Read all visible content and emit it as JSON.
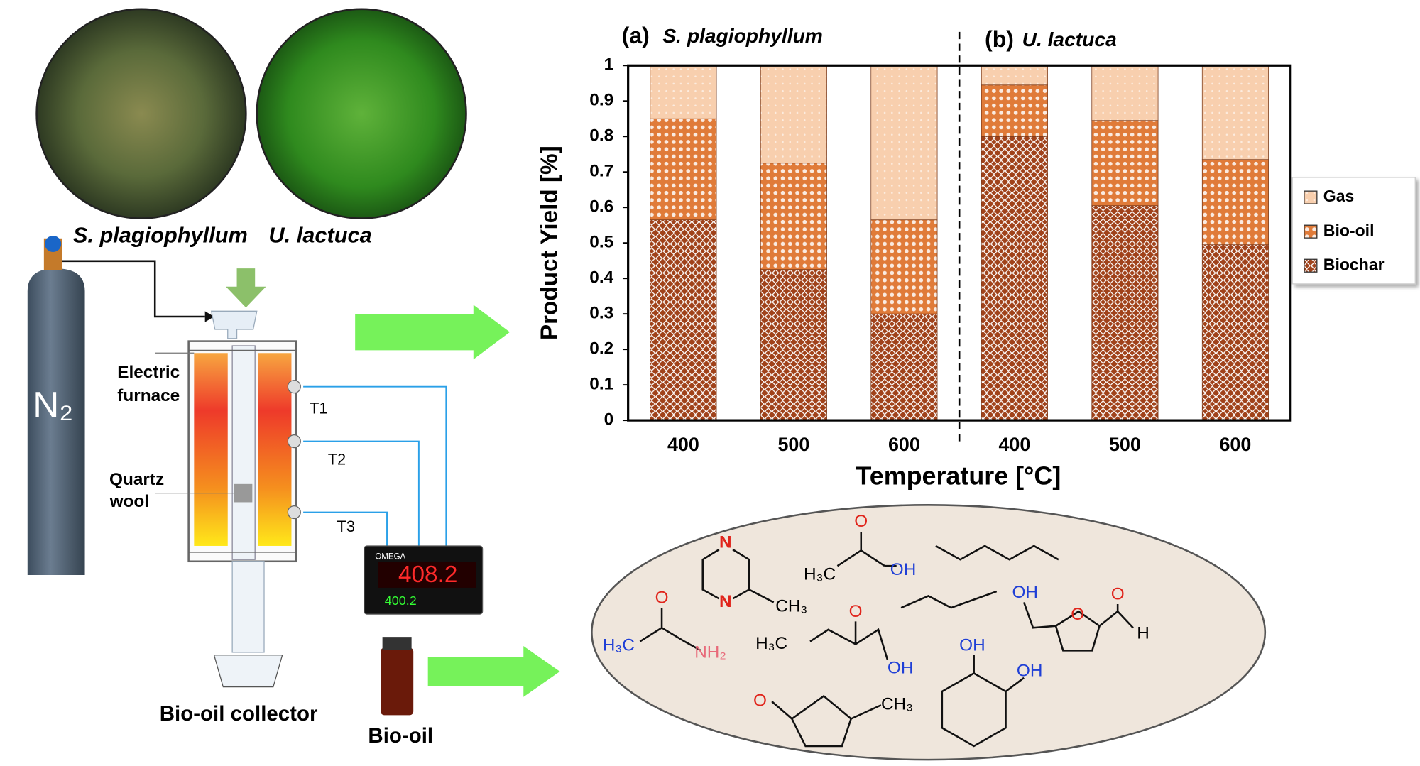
{
  "chart_data": {
    "type": "stacked-bar",
    "panel_titles": [
      {
        "tag": "(a)",
        "name": "S. plagiophyllum"
      },
      {
        "tag": "(b)",
        "name": "U. lactuca"
      }
    ],
    "x_label": "Temperature [°C]",
    "y_label": "Product Yield [%]",
    "categories": [
      "400",
      "500",
      "600",
      "400",
      "500",
      "600"
    ],
    "series": [
      {
        "name": "Biochar",
        "color": "#a0421a",
        "values": [
          0.565,
          0.425,
          0.3,
          0.8,
          0.605,
          0.495
        ]
      },
      {
        "name": "Bio-oil",
        "color": "#e07b39",
        "values": [
          0.285,
          0.3,
          0.265,
          0.145,
          0.24,
          0.24
        ]
      },
      {
        "name": "Gas",
        "color": "#f8cfae",
        "values": [
          0.15,
          0.275,
          0.435,
          0.055,
          0.155,
          0.265
        ]
      }
    ],
    "ylim": [
      0,
      1
    ],
    "yticks": [
      0,
      0.1,
      0.2,
      0.3,
      0.4,
      0.5,
      0.6,
      0.7,
      0.8,
      0.9,
      1
    ],
    "legend": "right"
  },
  "diagram": {
    "photo_labels": [
      "S. plagiophyllum",
      "U. lactuca"
    ],
    "gas": "N₂",
    "electric_furnace": [
      "Electric",
      "furnace"
    ],
    "quartz_wool": [
      "Quartz",
      "wool"
    ],
    "thermocouples": [
      "T1",
      "T2",
      "T3"
    ],
    "controller": {
      "brand": "OMEGA",
      "pv": "408.2",
      "sv": "400.2"
    },
    "collector": "Bio-oil collector",
    "product": "Bio-oil",
    "molecule_labels": [
      "N",
      "N",
      "CH₃",
      "O",
      "H₃C",
      "OH",
      "OH",
      "O",
      "O",
      "H",
      "O",
      "H₃C",
      "NH₂",
      "O",
      "H₃C",
      "OH",
      "OH",
      "OH",
      "O",
      "CH₃"
    ]
  }
}
